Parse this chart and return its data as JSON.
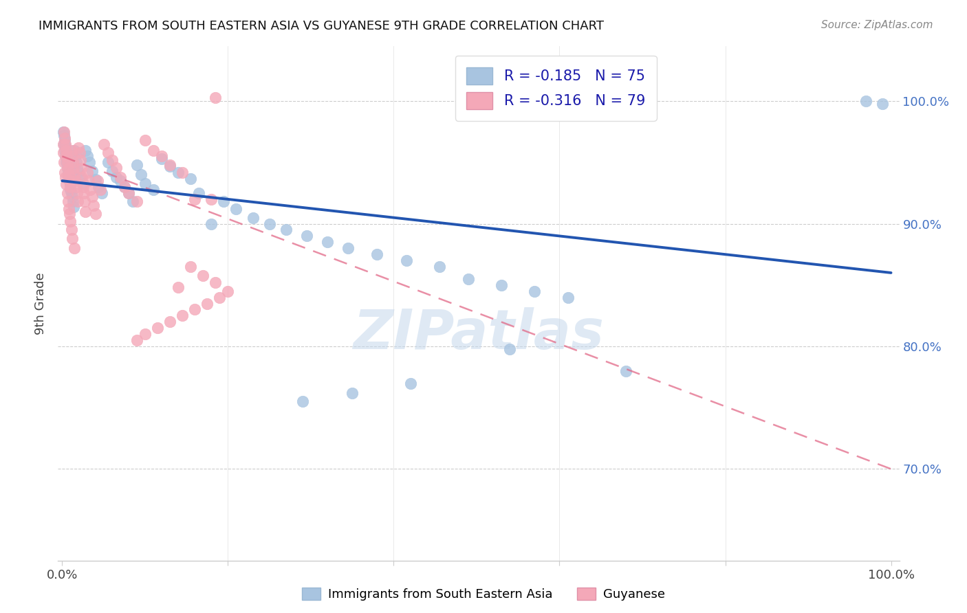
{
  "title": "IMMIGRANTS FROM SOUTH EASTERN ASIA VS GUYANESE 9TH GRADE CORRELATION CHART",
  "source": "Source: ZipAtlas.com",
  "ylabel": "9th Grade",
  "xmin": -0.005,
  "xmax": 1.01,
  "ymin": 0.625,
  "ymax": 1.045,
  "yticks": [
    0.7,
    0.8,
    0.9,
    1.0
  ],
  "ytick_labels": [
    "70.0%",
    "80.0%",
    "90.0%",
    "100.0%"
  ],
  "xtick_positions": [
    0.0,
    0.2,
    0.4,
    0.6,
    0.8,
    1.0
  ],
  "xtick_labels": [
    "0.0%",
    "",
    "",
    "",
    "",
    "100.0%"
  ],
  "legend_blue_r": "-0.185",
  "legend_blue_n": "75",
  "legend_pink_r": "-0.316",
  "legend_pink_n": "79",
  "blue_scatter_color": "#a8c4e0",
  "blue_line_color": "#2255b0",
  "pink_scatter_color": "#f4a8b8",
  "pink_line_color": "#e06080",
  "grid_color": "#cccccc",
  "watermark_color": "#c5d8ec",
  "blue_trend_x0": 0.0,
  "blue_trend_x1": 1.0,
  "blue_trend_y0": 0.935,
  "blue_trend_y1": 0.86,
  "pink_trend_x0": 0.0,
  "pink_trend_x1": 1.0,
  "pink_trend_y0": 0.955,
  "pink_trend_y1": 0.7,
  "blue_x": [
    0.001,
    0.002,
    0.002,
    0.003,
    0.003,
    0.004,
    0.004,
    0.005,
    0.005,
    0.006,
    0.006,
    0.007,
    0.007,
    0.008,
    0.008,
    0.009,
    0.01,
    0.01,
    0.011,
    0.012,
    0.013,
    0.014,
    0.015,
    0.016,
    0.017,
    0.018,
    0.02,
    0.022,
    0.025,
    0.028,
    0.03,
    0.033,
    0.036,
    0.04,
    0.044,
    0.048,
    0.055,
    0.06,
    0.065,
    0.07,
    0.075,
    0.08,
    0.085,
    0.09,
    0.095,
    0.1,
    0.11,
    0.12,
    0.13,
    0.14,
    0.155,
    0.165,
    0.18,
    0.195,
    0.21,
    0.23,
    0.25,
    0.27,
    0.295,
    0.32,
    0.345,
    0.38,
    0.415,
    0.455,
    0.49,
    0.53,
    0.57,
    0.61,
    0.54,
    0.42,
    0.35,
    0.29,
    0.68,
    0.97,
    0.99
  ],
  "blue_y": [
    0.975,
    0.972,
    0.965,
    0.968,
    0.96,
    0.963,
    0.955,
    0.958,
    0.95,
    0.952,
    0.945,
    0.948,
    0.94,
    0.943,
    0.936,
    0.938,
    0.933,
    0.928,
    0.925,
    0.922,
    0.918,
    0.914,
    0.96,
    0.956,
    0.95,
    0.945,
    0.942,
    0.938,
    0.933,
    0.96,
    0.955,
    0.95,
    0.943,
    0.936,
    0.93,
    0.925,
    0.95,
    0.943,
    0.938,
    0.935,
    0.93,
    0.925,
    0.918,
    0.948,
    0.94,
    0.933,
    0.928,
    0.953,
    0.947,
    0.942,
    0.937,
    0.925,
    0.9,
    0.918,
    0.912,
    0.905,
    0.9,
    0.895,
    0.89,
    0.885,
    0.88,
    0.875,
    0.87,
    0.865,
    0.855,
    0.85,
    0.845,
    0.84,
    0.798,
    0.77,
    0.762,
    0.755,
    0.78,
    1.0,
    0.998
  ],
  "pink_x": [
    0.001,
    0.001,
    0.002,
    0.002,
    0.003,
    0.003,
    0.004,
    0.004,
    0.005,
    0.005,
    0.005,
    0.006,
    0.006,
    0.007,
    0.007,
    0.008,
    0.008,
    0.009,
    0.009,
    0.01,
    0.01,
    0.011,
    0.011,
    0.012,
    0.012,
    0.013,
    0.014,
    0.015,
    0.015,
    0.016,
    0.017,
    0.018,
    0.019,
    0.02,
    0.021,
    0.022,
    0.023,
    0.024,
    0.025,
    0.026,
    0.027,
    0.028,
    0.03,
    0.032,
    0.034,
    0.036,
    0.038,
    0.04,
    0.043,
    0.046,
    0.05,
    0.055,
    0.06,
    0.065,
    0.07,
    0.075,
    0.08,
    0.09,
    0.1,
    0.11,
    0.12,
    0.13,
    0.145,
    0.16,
    0.18,
    0.14,
    0.155,
    0.17,
    0.185,
    0.2,
    0.19,
    0.175,
    0.16,
    0.145,
    0.13,
    0.115,
    0.1,
    0.09,
    0.185
  ],
  "pink_y": [
    0.965,
    0.958,
    0.975,
    0.95,
    0.97,
    0.942,
    0.965,
    0.938,
    0.96,
    0.932,
    0.955,
    0.95,
    0.925,
    0.945,
    0.918,
    0.94,
    0.912,
    0.935,
    0.908,
    0.93,
    0.902,
    0.96,
    0.895,
    0.955,
    0.888,
    0.95,
    0.945,
    0.94,
    0.88,
    0.935,
    0.93,
    0.925,
    0.918,
    0.962,
    0.958,
    0.952,
    0.945,
    0.938,
    0.93,
    0.925,
    0.918,
    0.91,
    0.942,
    0.935,
    0.928,
    0.922,
    0.915,
    0.908,
    0.935,
    0.928,
    0.965,
    0.958,
    0.952,
    0.946,
    0.938,
    0.93,
    0.925,
    0.918,
    0.968,
    0.96,
    0.955,
    0.948,
    0.942,
    0.92,
    0.92,
    0.848,
    0.865,
    0.858,
    0.852,
    0.845,
    0.84,
    0.835,
    0.83,
    0.825,
    0.82,
    0.815,
    0.81,
    0.805,
    1.003
  ]
}
